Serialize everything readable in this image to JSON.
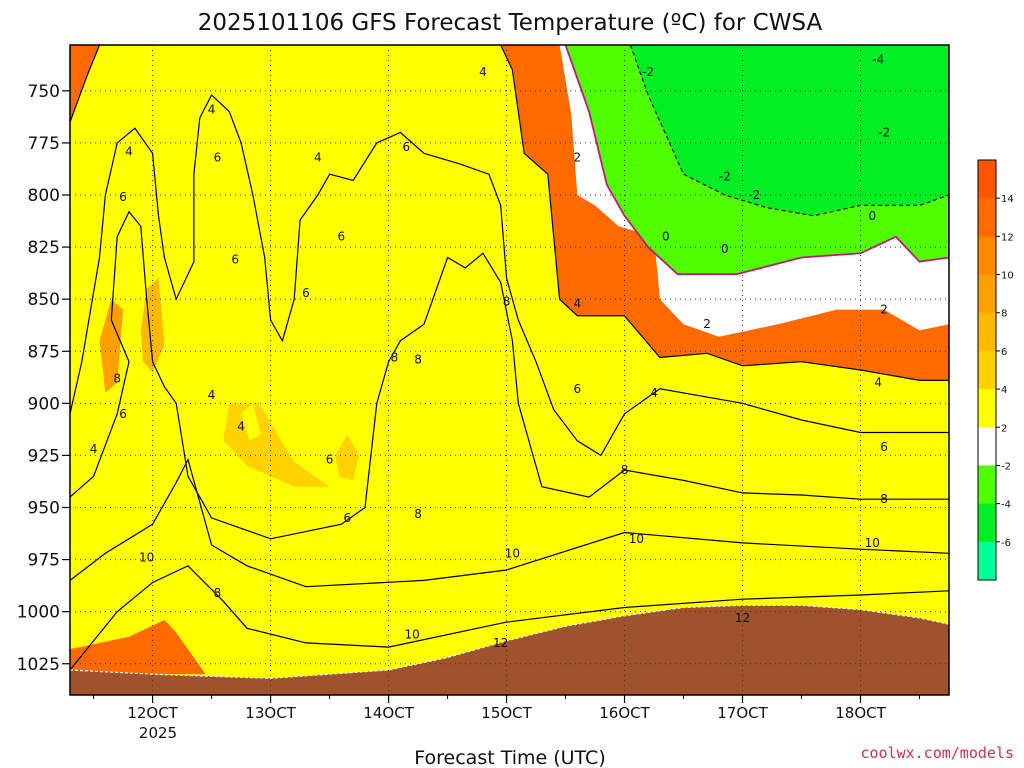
{
  "chart_data": {
    "type": "contour",
    "title": "2025101106 GFS Forecast Temperature (ºC) for CWSA",
    "xlabel": "Forecast Time (UTC)",
    "ylabel": "",
    "x_ticks": [
      "12OCT",
      "13OCT",
      "14OCT",
      "15OCT",
      "16OCT",
      "17OCT",
      "18OCT"
    ],
    "x_tick_sublabel": "2025",
    "y_ticks": [
      "750",
      "775",
      "800",
      "825",
      "850",
      "875",
      "900",
      "925",
      "950",
      "975",
      "1000",
      "1025"
    ],
    "y_range": [
      728,
      1040
    ],
    "x_range_days": [
      11.3,
      18.75
    ],
    "grid": true,
    "colorbar": {
      "ticks": [
        "14",
        "12",
        "10",
        "8",
        "6",
        "4",
        "2",
        "-2",
        "-4",
        "-6"
      ],
      "levels": [
        16,
        14,
        12,
        10,
        8,
        6,
        4,
        2,
        -2,
        -4,
        -6,
        -8
      ],
      "colors": [
        "#ff5500",
        "#ff6a00",
        "#ff8800",
        "#ffa000",
        "#ffba00",
        "#ffd200",
        "#ffff00",
        "#ffffff",
        "#50ff00",
        "#00ee22",
        "#00ff99"
      ]
    },
    "fill_colors": {
      "t12": "#ff6a00",
      "t10": "#ff8800",
      "t8": "#ffa000",
      "t6": "#ffba00",
      "t4": "#ffd200",
      "t2": "#ffff00",
      "t0": "#ffffff",
      "tm2": "#50ff00",
      "tm4": "#00ee22",
      "terrain": "#a0522d",
      "freezing_line": "#c0187a"
    },
    "contour_labels": [
      {
        "text": "4",
        "t": 14.8,
        "p": 741
      },
      {
        "text": "4",
        "t": 12.5,
        "p": 759
      },
      {
        "text": "4",
        "t": 11.8,
        "p": 779
      },
      {
        "text": "6",
        "t": 12.55,
        "p": 782
      },
      {
        "text": "4",
        "t": 13.4,
        "p": 782
      },
      {
        "text": "6",
        "t": 14.15,
        "p": 777
      },
      {
        "text": "2",
        "t": 15.6,
        "p": 782
      },
      {
        "text": "6",
        "t": 11.75,
        "p": 801
      },
      {
        "text": "6",
        "t": 13.6,
        "p": 820
      },
      {
        "text": "6",
        "t": 12.7,
        "p": 831
      },
      {
        "text": "6",
        "t": 13.3,
        "p": 847
      },
      {
        "text": "8",
        "t": 15.0,
        "p": 851
      },
      {
        "text": "4",
        "t": 15.6,
        "p": 852
      },
      {
        "text": "8",
        "t": 11.7,
        "p": 888
      },
      {
        "text": "8",
        "t": 14.05,
        "p": 878
      },
      {
        "text": "8",
        "t": 14.25,
        "p": 879
      },
      {
        "text": "6",
        "t": 15.6,
        "p": 893
      },
      {
        "text": "4",
        "t": 12.5,
        "p": 896
      },
      {
        "text": "6",
        "t": 11.75,
        "p": 905
      },
      {
        "text": "4",
        "t": 12.75,
        "p": 911
      },
      {
        "text": "4",
        "t": 11.5,
        "p": 922
      },
      {
        "text": "6",
        "t": 13.5,
        "p": 927
      },
      {
        "text": "8",
        "t": 16.0,
        "p": 932
      },
      {
        "text": "6",
        "t": 13.65,
        "p": 955
      },
      {
        "text": "8",
        "t": 14.25,
        "p": 953
      },
      {
        "text": "10",
        "t": 15.05,
        "p": 972
      },
      {
        "text": "10",
        "t": 16.1,
        "p": 965
      },
      {
        "text": "10",
        "t": 11.95,
        "p": 974
      },
      {
        "text": "8",
        "t": 12.55,
        "p": 991
      },
      {
        "text": "10",
        "t": 14.2,
        "p": 1011
      },
      {
        "text": "12",
        "t": 14.95,
        "p": 1015
      },
      {
        "text": "12",
        "t": 17.0,
        "p": 1003
      },
      {
        "text": "-2",
        "t": 16.2,
        "p": 741
      },
      {
        "text": "-4",
        "t": 18.15,
        "p": 735
      },
      {
        "text": "-2",
        "t": 18.2,
        "p": 770
      },
      {
        "text": "-2",
        "t": 16.85,
        "p": 791
      },
      {
        "text": "-2",
        "t": 17.1,
        "p": 800
      },
      {
        "text": "0",
        "t": 16.35,
        "p": 820
      },
      {
        "text": "0",
        "t": 16.85,
        "p": 826
      },
      {
        "text": "0",
        "t": 18.1,
        "p": 810
      },
      {
        "text": "2",
        "t": 16.7,
        "p": 862
      },
      {
        "text": "2",
        "t": 18.2,
        "p": 855
      },
      {
        "text": "4",
        "t": 16.25,
        "p": 895
      },
      {
        "text": "4",
        "t": 18.15,
        "p": 890
      },
      {
        "text": "6",
        "t": 18.2,
        "p": 921
      },
      {
        "text": "8",
        "t": 18.2,
        "p": 946
      },
      {
        "text": "10",
        "t": 18.1,
        "p": 967
      }
    ]
  },
  "credit": "coolwx.com/models"
}
